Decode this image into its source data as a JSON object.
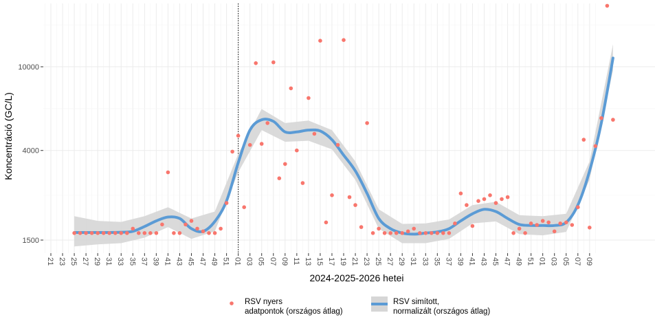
{
  "chart_data": {
    "type": "scatter",
    "xlabel": "2024-2025-2026 hetei",
    "ylabel": "Koncentráció (GC/L)",
    "y_scale": "log",
    "ylim": [
      1300,
      20000
    ],
    "y_ticks": [
      1500,
      4000,
      10000
    ],
    "x_ticks": [
      "21",
      "23",
      "25",
      "27",
      "29",
      "31",
      "33",
      "35",
      "37",
      "39",
      "41",
      "43",
      "45",
      "47",
      "49",
      "51",
      "01",
      "03",
      "05",
      "07",
      "09",
      "11",
      "13",
      "15",
      "17",
      "19",
      "21",
      "23",
      "25",
      "27",
      "29",
      "31",
      "33",
      "35",
      "37",
      "39",
      "41",
      "43",
      "45",
      "47",
      "49",
      "51",
      "01",
      "03",
      "05",
      "07",
      "09"
    ],
    "reference_line_at": "01",
    "grid": true,
    "legend_position": "bottom",
    "series": [
      {
        "name": "RSV nyers\n adatpontok (országos átlag)",
        "kind": "points",
        "color": "#f8766d",
        "points": [
          [
            25,
            1620
          ],
          [
            26,
            1620
          ],
          [
            27,
            1620
          ],
          [
            28,
            1620
          ],
          [
            29,
            1620
          ],
          [
            30,
            1620
          ],
          [
            31,
            1620
          ],
          [
            32,
            1620
          ],
          [
            33,
            1620
          ],
          [
            34,
            1620
          ],
          [
            35,
            1700
          ],
          [
            36,
            1620
          ],
          [
            37,
            1620
          ],
          [
            38,
            1620
          ],
          [
            39,
            1620
          ],
          [
            40,
            1780
          ],
          [
            41,
            3150
          ],
          [
            42,
            1620
          ],
          [
            43,
            1620
          ],
          [
            44,
            1780
          ],
          [
            45,
            1850
          ],
          [
            46,
            1700
          ],
          [
            47,
            1650
          ],
          [
            48,
            1620
          ],
          [
            49,
            1620
          ],
          [
            50,
            1700
          ],
          [
            51,
            2250
          ],
          [
            52,
            3950
          ],
          [
            53,
            4700
          ],
          [
            54,
            2150
          ],
          [
            55,
            4250
          ],
          [
            56,
            10400
          ],
          [
            57,
            4300
          ],
          [
            58,
            5400
          ],
          [
            59,
            10500
          ],
          [
            60,
            2950
          ],
          [
            61,
            3450
          ],
          [
            62,
            7900
          ],
          [
            63,
            4000
          ],
          [
            64,
            2800
          ],
          [
            65,
            7100
          ],
          [
            66,
            4800
          ],
          [
            67,
            13300
          ],
          [
            68,
            1820
          ],
          [
            69,
            2450
          ],
          [
            70,
            4250
          ],
          [
            71,
            13400
          ],
          [
            72,
            2400
          ],
          [
            73,
            2200
          ],
          [
            74,
            1730
          ],
          [
            75,
            5400
          ],
          [
            76,
            1620
          ],
          [
            77,
            1700
          ],
          [
            78,
            1620
          ],
          [
            79,
            1620
          ],
          [
            80,
            1620
          ],
          [
            81,
            1620
          ],
          [
            82,
            1650
          ],
          [
            83,
            1700
          ],
          [
            84,
            1620
          ],
          [
            85,
            1620
          ],
          [
            86,
            1620
          ],
          [
            87,
            1620
          ],
          [
            88,
            1620
          ],
          [
            89,
            1620
          ],
          [
            90,
            1800
          ],
          [
            91,
            2500
          ],
          [
            92,
            2200
          ],
          [
            93,
            1750
          ],
          [
            94,
            2300
          ],
          [
            95,
            2350
          ],
          [
            96,
            2450
          ],
          [
            97,
            2250
          ],
          [
            98,
            2350
          ],
          [
            99,
            2400
          ],
          [
            100,
            1620
          ],
          [
            101,
            1700
          ],
          [
            102,
            1620
          ],
          [
            103,
            1800
          ],
          [
            104,
            1770
          ],
          [
            105,
            1850
          ],
          [
            106,
            1820
          ],
          [
            107,
            1650
          ],
          [
            108,
            1800
          ],
          [
            109,
            1820
          ],
          [
            110,
            1770
          ],
          [
            111,
            2150
          ],
          [
            112,
            4500
          ],
          [
            113,
            1720
          ],
          [
            114,
            4200
          ],
          [
            115,
            5700
          ],
          [
            116,
            19500
          ],
          [
            117,
            5600
          ]
        ]
      },
      {
        "name": "RSV simított,\n normalizált (országos átlag)",
        "kind": "smooth_with_band",
        "color": "#5b9bd5",
        "band_color": "#d6d6d6",
        "points": [
          [
            25,
            1630
          ],
          [
            27,
            1630
          ],
          [
            29,
            1630
          ],
          [
            31,
            1630
          ],
          [
            33,
            1635
          ],
          [
            35,
            1650
          ],
          [
            37,
            1740
          ],
          [
            39,
            1850
          ],
          [
            41,
            1930
          ],
          [
            43,
            1900
          ],
          [
            45,
            1700
          ],
          [
            47,
            1650
          ],
          [
            49,
            1840
          ],
          [
            51,
            2300
          ],
          [
            53,
            3500
          ],
          [
            55,
            5000
          ],
          [
            57,
            5600
          ],
          [
            59,
            5500
          ],
          [
            61,
            4900
          ],
          [
            63,
            4900
          ],
          [
            65,
            5000
          ],
          [
            67,
            4950
          ],
          [
            69,
            4500
          ],
          [
            71,
            3800
          ],
          [
            73,
            3200
          ],
          [
            75,
            2500
          ],
          [
            77,
            1900
          ],
          [
            79,
            1700
          ],
          [
            81,
            1620
          ],
          [
            83,
            1600
          ],
          [
            85,
            1620
          ],
          [
            87,
            1640
          ],
          [
            89,
            1700
          ],
          [
            91,
            1850
          ],
          [
            93,
            2000
          ],
          [
            95,
            2100
          ],
          [
            97,
            2050
          ],
          [
            99,
            1900
          ],
          [
            101,
            1780
          ],
          [
            103,
            1760
          ],
          [
            105,
            1760
          ],
          [
            107,
            1760
          ],
          [
            109,
            1820
          ],
          [
            111,
            2200
          ],
          [
            113,
            3200
          ],
          [
            115,
            5400
          ],
          [
            117,
            11000
          ]
        ],
        "band": [
          [
            25,
            1400,
            1950
          ],
          [
            29,
            1430,
            1850
          ],
          [
            33,
            1450,
            1830
          ],
          [
            37,
            1540,
            1950
          ],
          [
            41,
            1730,
            2150
          ],
          [
            45,
            1520,
            1900
          ],
          [
            49,
            1650,
            2050
          ],
          [
            53,
            3150,
            3850
          ],
          [
            57,
            5000,
            6300
          ],
          [
            61,
            4400,
            5400
          ],
          [
            65,
            4450,
            5550
          ],
          [
            69,
            4050,
            5000
          ],
          [
            73,
            2900,
            3550
          ],
          [
            77,
            1700,
            2100
          ],
          [
            81,
            1450,
            1790
          ],
          [
            85,
            1450,
            1800
          ],
          [
            89,
            1520,
            1880
          ],
          [
            93,
            1800,
            2200
          ],
          [
            97,
            1840,
            2280
          ],
          [
            101,
            1600,
            1970
          ],
          [
            105,
            1580,
            1950
          ],
          [
            109,
            1640,
            2000
          ],
          [
            113,
            2900,
            3550
          ],
          [
            117,
            9600,
            12800
          ]
        ]
      }
    ]
  }
}
